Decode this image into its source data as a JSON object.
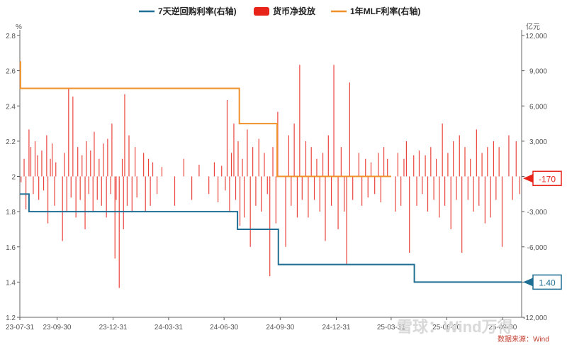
{
  "chart_data": {
    "type": "bar+line",
    "legend": [
      {
        "label": "7天逆回购利率(右轴)",
        "color": "#1f6e94",
        "kind": "line"
      },
      {
        "label": "货币净投放",
        "color": "#e8231a",
        "kind": "bar"
      },
      {
        "label": "1年MLF利率(右轴)",
        "color": "#f0902a",
        "kind": "line"
      }
    ],
    "left_axis": {
      "unit": "%",
      "min": 1.2,
      "max": 2.8,
      "ticks": [
        "1.2",
        "1.4",
        "1.6",
        "1.8",
        "2",
        "2.2",
        "2.4",
        "2.6",
        "2.8"
      ]
    },
    "right_axis": {
      "unit": "亿元",
      "min": -12000,
      "max": 12000,
      "ticks": [
        "-12,000",
        "-9,000",
        "-6,000",
        "-3,000",
        "0",
        "3,000",
        "6,000",
        "9,000",
        "12,000"
      ]
    },
    "x_range": [
      "2023-07-31",
      "2025-10-31"
    ],
    "x_ticks": [
      {
        "date": "2023-07-31",
        "label": "23-07-31"
      },
      {
        "date": "2023-09-30",
        "label": "23-09-30"
      },
      {
        "date": "2023-12-31",
        "label": "23-12-31"
      },
      {
        "date": "2024-03-31",
        "label": "24-03-31"
      },
      {
        "date": "2024-06-30",
        "label": "24-06-30"
      },
      {
        "date": "2024-09-30",
        "label": "24-09-30"
      },
      {
        "date": "2024-12-31",
        "label": "24-12-31"
      },
      {
        "date": "2025-03-31",
        "label": "25-03-31"
      },
      {
        "date": "2025-06-30",
        "label": "25-06-30"
      },
      {
        "date": "2025-09-30",
        "label": "25-09-30"
      }
    ],
    "reverse_repo_7d": [
      {
        "date": "2023-07-31",
        "value": 1.9
      },
      {
        "date": "2023-08-15",
        "value": 1.8
      },
      {
        "date": "2024-07-22",
        "value": 1.7
      },
      {
        "date": "2024-09-27",
        "value": 1.5
      },
      {
        "date": "2025-05-08",
        "value": 1.4
      },
      {
        "date": "2025-10-31",
        "value": 1.4
      }
    ],
    "mlf_1y": [
      {
        "date": "2023-07-31",
        "value": 2.65
      },
      {
        "date": "2023-08-01",
        "value": 2.5
      },
      {
        "date": "2024-07-25",
        "value": 2.3
      },
      {
        "date": "2024-09-25",
        "value": 2.0
      },
      {
        "date": "2025-03-31",
        "value": 2.0
      }
    ],
    "net_injection": [
      {
        "date": "2023-08-02",
        "value": -500
      },
      {
        "date": "2023-08-07",
        "value": 1500
      },
      {
        "date": "2023-08-10",
        "value": -2800
      },
      {
        "date": "2023-08-15",
        "value": 4000
      },
      {
        "date": "2023-08-18",
        "value": 2500
      },
      {
        "date": "2023-08-22",
        "value": -1500
      },
      {
        "date": "2023-08-25",
        "value": 3000
      },
      {
        "date": "2023-08-29",
        "value": 1800
      },
      {
        "date": "2023-08-31",
        "value": -2000
      },
      {
        "date": "2023-09-05",
        "value": 2200
      },
      {
        "date": "2023-09-08",
        "value": -1200
      },
      {
        "date": "2023-09-13",
        "value": 3500
      },
      {
        "date": "2023-09-15",
        "value": -4000
      },
      {
        "date": "2023-09-19",
        "value": 1500
      },
      {
        "date": "2023-09-22",
        "value": 2800
      },
      {
        "date": "2023-09-26",
        "value": -2500
      },
      {
        "date": "2023-09-28",
        "value": 1200
      },
      {
        "date": "2023-10-09",
        "value": -5500
      },
      {
        "date": "2023-10-12",
        "value": 2000
      },
      {
        "date": "2023-10-16",
        "value": -3000
      },
      {
        "date": "2023-10-19",
        "value": 7500
      },
      {
        "date": "2023-10-23",
        "value": -1800
      },
      {
        "date": "2023-10-26",
        "value": 6800
      },
      {
        "date": "2023-10-31",
        "value": -3500
      },
      {
        "date": "2023-11-03",
        "value": 2500
      },
      {
        "date": "2023-11-07",
        "value": -2000
      },
      {
        "date": "2023-11-10",
        "value": 1800
      },
      {
        "date": "2023-11-15",
        "value": -4500
      },
      {
        "date": "2023-11-17",
        "value": 3000
      },
      {
        "date": "2023-11-21",
        "value": -1500
      },
      {
        "date": "2023-11-24",
        "value": 2200
      },
      {
        "date": "2023-11-28",
        "value": -3000
      },
      {
        "date": "2023-11-30",
        "value": 3800
      },
      {
        "date": "2023-12-05",
        "value": -2000
      },
      {
        "date": "2023-12-08",
        "value": 1500
      },
      {
        "date": "2023-12-12",
        "value": -2500
      },
      {
        "date": "2023-12-15",
        "value": 2800
      },
      {
        "date": "2023-12-20",
        "value": -3500
      },
      {
        "date": "2023-12-22",
        "value": 3200
      },
      {
        "date": "2023-12-27",
        "value": -1500
      },
      {
        "date": "2023-12-29",
        "value": 4500
      },
      {
        "date": "2024-01-03",
        "value": -7000
      },
      {
        "date": "2024-01-05",
        "value": -2000
      },
      {
        "date": "2024-01-10",
        "value": -9500
      },
      {
        "date": "2024-01-15",
        "value": 1500
      },
      {
        "date": "2024-01-17",
        "value": -4500
      },
      {
        "date": "2024-01-19",
        "value": 7000
      },
      {
        "date": "2024-01-23",
        "value": -2500
      },
      {
        "date": "2024-01-26",
        "value": 3500
      },
      {
        "date": "2024-01-31",
        "value": -3000
      },
      {
        "date": "2024-02-05",
        "value": 2500
      },
      {
        "date": "2024-02-08",
        "value": -1800
      },
      {
        "date": "2024-02-19",
        "value": 2000
      },
      {
        "date": "2024-02-22",
        "value": -3000
      },
      {
        "date": "2024-02-27",
        "value": 1500
      },
      {
        "date": "2024-03-01",
        "value": -2500
      },
      {
        "date": "2024-03-05",
        "value": 1200
      },
      {
        "date": "2024-03-12",
        "value": -1500
      },
      {
        "date": "2024-03-20",
        "value": 800
      },
      {
        "date": "2024-04-10",
        "value": -2500
      },
      {
        "date": "2024-04-25",
        "value": 1500
      },
      {
        "date": "2024-05-08",
        "value": -2000
      },
      {
        "date": "2024-05-20",
        "value": 1000
      },
      {
        "date": "2024-06-05",
        "value": -1500
      },
      {
        "date": "2024-06-14",
        "value": 1200
      },
      {
        "date": "2024-06-20",
        "value": -2200
      },
      {
        "date": "2024-06-26",
        "value": 900
      },
      {
        "date": "2024-07-02",
        "value": -1200
      },
      {
        "date": "2024-07-05",
        "value": 6500
      },
      {
        "date": "2024-07-09",
        "value": -3000
      },
      {
        "date": "2024-07-12",
        "value": 2000
      },
      {
        "date": "2024-07-16",
        "value": 4500
      },
      {
        "date": "2024-07-19",
        "value": -2000
      },
      {
        "date": "2024-07-23",
        "value": 3000
      },
      {
        "date": "2024-07-26",
        "value": -4200
      },
      {
        "date": "2024-07-30",
        "value": 1500
      },
      {
        "date": "2024-08-02",
        "value": -3500
      },
      {
        "date": "2024-08-07",
        "value": 4000
      },
      {
        "date": "2024-08-12",
        "value": -6000
      },
      {
        "date": "2024-08-16",
        "value": 2500
      },
      {
        "date": "2024-08-21",
        "value": -2500
      },
      {
        "date": "2024-08-26",
        "value": 3200
      },
      {
        "date": "2024-08-30",
        "value": -3000
      },
      {
        "date": "2024-09-04",
        "value": 2000
      },
      {
        "date": "2024-09-09",
        "value": -1500
      },
      {
        "date": "2024-09-13",
        "value": -8500
      },
      {
        "date": "2024-09-18",
        "value": 2500
      },
      {
        "date": "2024-09-23",
        "value": -4000
      },
      {
        "date": "2024-09-26",
        "value": 5500
      },
      {
        "date": "2024-10-09",
        "value": -6000
      },
      {
        "date": "2024-10-14",
        "value": 3500
      },
      {
        "date": "2024-10-18",
        "value": -2500
      },
      {
        "date": "2024-10-23",
        "value": 4500
      },
      {
        "date": "2024-10-28",
        "value": -3500
      },
      {
        "date": "2024-11-01",
        "value": 9500
      },
      {
        "date": "2024-11-05",
        "value": -2000
      },
      {
        "date": "2024-11-11",
        "value": 3000
      },
      {
        "date": "2024-11-15",
        "value": -3500
      },
      {
        "date": "2024-11-20",
        "value": 2500
      },
      {
        "date": "2024-11-25",
        "value": -2000
      },
      {
        "date": "2024-11-29",
        "value": 1500
      },
      {
        "date": "2024-12-04",
        "value": -3000
      },
      {
        "date": "2024-12-09",
        "value": 2000
      },
      {
        "date": "2024-12-13",
        "value": -5500
      },
      {
        "date": "2024-12-18",
        "value": 3500
      },
      {
        "date": "2024-12-23",
        "value": -2500
      },
      {
        "date": "2024-12-27",
        "value": 9500
      },
      {
        "date": "2025-01-03",
        "value": -4500
      },
      {
        "date": "2025-01-08",
        "value": 2500
      },
      {
        "date": "2025-01-13",
        "value": -3000
      },
      {
        "date": "2025-01-17",
        "value": -7500
      },
      {
        "date": "2025-01-22",
        "value": 8000
      },
      {
        "date": "2025-01-27",
        "value": -2000
      },
      {
        "date": "2025-02-06",
        "value": 2000
      },
      {
        "date": "2025-02-11",
        "value": -2500
      },
      {
        "date": "2025-02-17",
        "value": 1500
      },
      {
        "date": "2025-02-21",
        "value": -1800
      },
      {
        "date": "2025-02-26",
        "value": 1200
      },
      {
        "date": "2025-03-04",
        "value": -1500
      },
      {
        "date": "2025-03-10",
        "value": 2000
      },
      {
        "date": "2025-03-14",
        "value": -2200
      },
      {
        "date": "2025-03-19",
        "value": 2500
      },
      {
        "date": "2025-03-25",
        "value": 1500
      },
      {
        "date": "2025-04-07",
        "value": -3000
      },
      {
        "date": "2025-04-11",
        "value": 2000
      },
      {
        "date": "2025-04-16",
        "value": -2500
      },
      {
        "date": "2025-04-21",
        "value": 1500
      },
      {
        "date": "2025-04-25",
        "value": 3000
      },
      {
        "date": "2025-04-30",
        "value": -6500
      },
      {
        "date": "2025-05-07",
        "value": 1800
      },
      {
        "date": "2025-05-12",
        "value": -2500
      },
      {
        "date": "2025-05-16",
        "value": 2200
      },
      {
        "date": "2025-05-21",
        "value": -1500
      },
      {
        "date": "2025-05-26",
        "value": 1800
      },
      {
        "date": "2025-05-30",
        "value": -3000
      },
      {
        "date": "2025-06-04",
        "value": 2500
      },
      {
        "date": "2025-06-09",
        "value": -2000
      },
      {
        "date": "2025-06-13",
        "value": 1500
      },
      {
        "date": "2025-06-18",
        "value": -3500
      },
      {
        "date": "2025-06-23",
        "value": 4500
      },
      {
        "date": "2025-06-27",
        "value": -2500
      },
      {
        "date": "2025-07-02",
        "value": 2000
      },
      {
        "date": "2025-07-07",
        "value": -4500
      },
      {
        "date": "2025-07-11",
        "value": 3000
      },
      {
        "date": "2025-07-16",
        "value": -2000
      },
      {
        "date": "2025-07-21",
        "value": 3500
      },
      {
        "date": "2025-07-25",
        "value": -6500
      },
      {
        "date": "2025-07-30",
        "value": 2500
      },
      {
        "date": "2025-08-04",
        "value": -2000
      },
      {
        "date": "2025-08-08",
        "value": 1500
      },
      {
        "date": "2025-08-13",
        "value": -3000
      },
      {
        "date": "2025-08-18",
        "value": 4000
      },
      {
        "date": "2025-08-22",
        "value": -2500
      },
      {
        "date": "2025-08-27",
        "value": 2000
      },
      {
        "date": "2025-09-01",
        "value": -4000
      },
      {
        "date": "2025-09-05",
        "value": 2500
      },
      {
        "date": "2025-09-10",
        "value": -3500
      },
      {
        "date": "2025-09-15",
        "value": 3000
      },
      {
        "date": "2025-09-19",
        "value": -2000
      },
      {
        "date": "2025-09-24",
        "value": 2500
      },
      {
        "date": "2025-09-29",
        "value": -6000
      },
      {
        "date": "2025-10-10",
        "value": 3500
      },
      {
        "date": "2025-10-16",
        "value": -2000
      },
      {
        "date": "2025-10-22",
        "value": 3000
      },
      {
        "date": "2025-10-28",
        "value": -1500
      }
    ],
    "end_labels": [
      {
        "text": "-170",
        "axis": "right",
        "value": -170,
        "color": "#e8231a"
      },
      {
        "text": "1.40",
        "axis": "left",
        "value": 1.4,
        "color": "#1f6e94"
      }
    ]
  },
  "source": "数据来源：Wind",
  "watermark": "雪球：Wind万得"
}
